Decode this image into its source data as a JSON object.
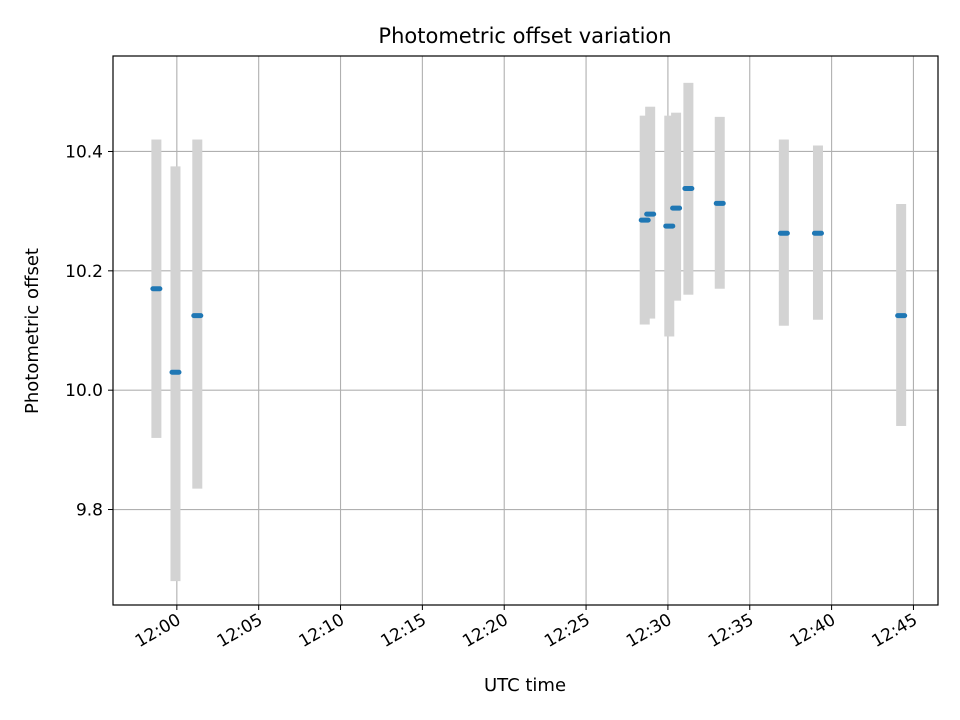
{
  "chart_data": {
    "type": "scatter",
    "title": "Photometric offset variation",
    "xlabel": "UTC time",
    "ylabel": "Photometric offset",
    "grid": true,
    "x_ticks": [
      "12:00",
      "12:05",
      "12:10",
      "12:15",
      "12:20",
      "12:25",
      "12:30",
      "12:35",
      "12:40",
      "12:45"
    ],
    "x_tick_minutes": [
      720,
      725,
      730,
      735,
      740,
      745,
      750,
      755,
      760,
      765
    ],
    "xlim": [
      716.1,
      766.5
    ],
    "y_ticks": [
      "9.8",
      "10.0",
      "10.2",
      "10.4"
    ],
    "y_tick_values": [
      9.8,
      10.0,
      10.2,
      10.4
    ],
    "ylim": [
      9.64,
      10.56
    ],
    "colors": {
      "point": "#1f77b4",
      "error_bar": "#d3d3d3"
    },
    "points": [
      {
        "t": "11:58:45",
        "y": 10.17,
        "lo": 9.92,
        "hi": 10.42
      },
      {
        "t": "11:59:55",
        "y": 10.03,
        "lo": 9.68,
        "hi": 10.375
      },
      {
        "t": "12:01:15",
        "y": 10.125,
        "lo": 9.835,
        "hi": 10.42
      },
      {
        "t": "12:28:35",
        "y": 10.285,
        "lo": 10.11,
        "hi": 10.46
      },
      {
        "t": "12:28:55",
        "y": 10.295,
        "lo": 10.12,
        "hi": 10.475
      },
      {
        "t": "12:30:05",
        "y": 10.275,
        "lo": 10.09,
        "hi": 10.46
      },
      {
        "t": "12:30:30",
        "y": 10.305,
        "lo": 10.15,
        "hi": 10.465
      },
      {
        "t": "12:31:15",
        "y": 10.338,
        "lo": 10.16,
        "hi": 10.515
      },
      {
        "t": "12:33:10",
        "y": 10.313,
        "lo": 10.17,
        "hi": 10.458
      },
      {
        "t": "12:37:05",
        "y": 10.263,
        "lo": 10.108,
        "hi": 10.42
      },
      {
        "t": "12:39:10",
        "y": 10.263,
        "lo": 10.118,
        "hi": 10.41
      },
      {
        "t": "12:44:15",
        "y": 10.125,
        "lo": 9.94,
        "hi": 10.312
      }
    ]
  }
}
